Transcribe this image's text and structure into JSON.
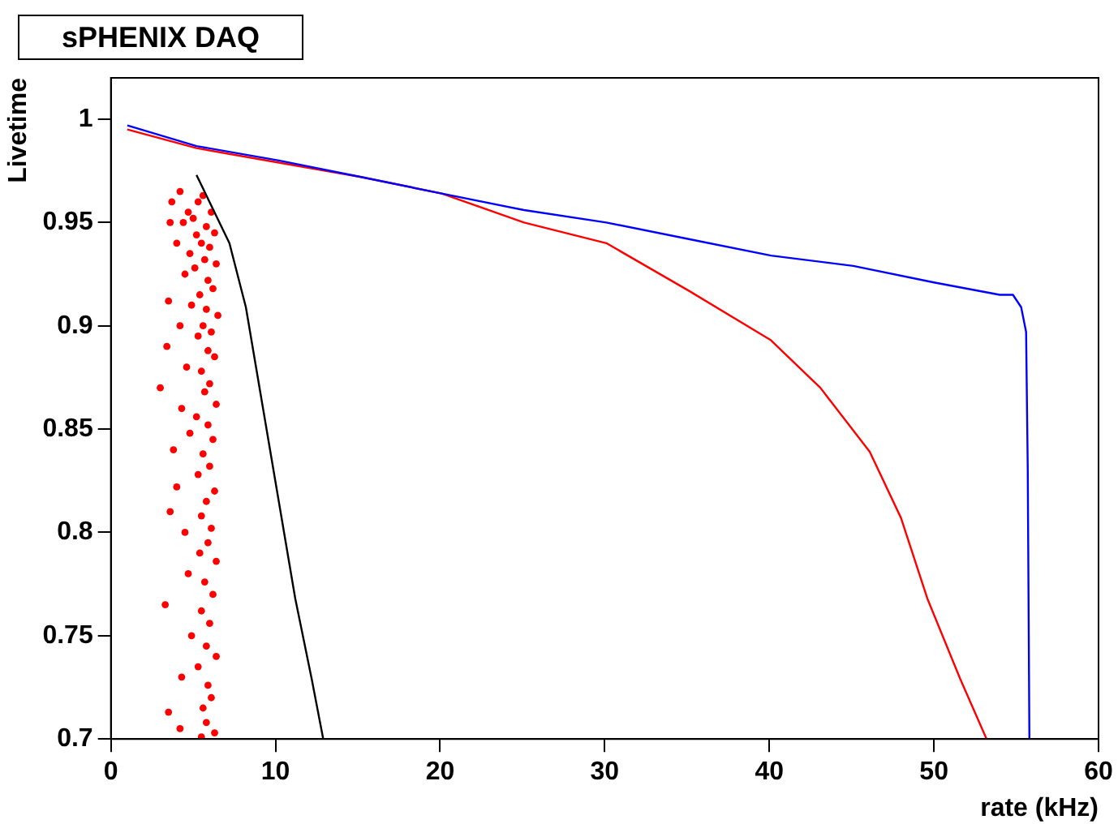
{
  "chart_data": {
    "type": "line",
    "title": "sPHENIX DAQ",
    "xlabel": "rate (kHz)",
    "ylabel": "Livetime",
    "xlim": [
      0,
      60
    ],
    "xticks": [
      0,
      10,
      20,
      30,
      40,
      50,
      60
    ],
    "ylim": [
      0.7,
      1.02
    ],
    "yticks": [
      0.7,
      0.75,
      0.8,
      0.85,
      0.9,
      0.95,
      1
    ],
    "grid": false,
    "legend": false,
    "series": [
      {
        "type": "line",
        "color": "#0000ff",
        "marker": "none",
        "x": [
          1,
          5.2,
          10.2,
          15.2,
          20.1,
          25.1,
          30.1,
          35.1,
          40.1,
          45.1,
          50,
          54,
          54.8,
          55.3,
          55.6,
          55.7,
          55.8
        ],
        "values": [
          0.997,
          0.987,
          0.98,
          0.972,
          0.964,
          0.956,
          0.95,
          0.942,
          0.934,
          0.929,
          0.921,
          0.915,
          0.915,
          0.909,
          0.897,
          0.831,
          0.7
        ]
      },
      {
        "type": "line",
        "color": "#ff0000",
        "marker": "none",
        "x": [
          1,
          5.2,
          10.2,
          15.2,
          20.1,
          25.1,
          30.1,
          35.1,
          40.1,
          43.1,
          46.1,
          48,
          49.6,
          51.6,
          53.2
        ],
        "values": [
          0.995,
          0.986,
          0.979,
          0.972,
          0.964,
          0.95,
          0.94,
          0.917,
          0.893,
          0.87,
          0.839,
          0.807,
          0.768,
          0.729,
          0.7
        ]
      },
      {
        "type": "line",
        "color": "#000000",
        "marker": "none",
        "x": [
          5.2,
          7.2,
          8.2,
          9.2,
          10.2,
          11.2,
          12.2,
          12.9
        ],
        "values": [
          0.973,
          0.94,
          0.909,
          0.862,
          0.815,
          0.768,
          0.729,
          0.7
        ]
      },
      {
        "type": "scatter",
        "color": "#ff0000",
        "marker": "circle",
        "x": [
          4.2,
          3.7,
          5.3,
          5.6,
          4.7,
          6.1,
          5.0,
          3.6,
          4.4,
          5.8,
          6.3,
          5.2,
          4.0,
          5.5,
          6.0,
          4.8,
          5.7,
          6.4,
          5.1,
          4.5,
          5.9,
          6.2,
          5.4,
          3.5,
          4.9,
          5.8,
          6.5,
          4.2,
          5.6,
          6.1,
          5.3,
          3.4,
          5.9,
          6.3,
          4.6,
          5.5,
          6.0,
          3.0,
          5.7,
          6.4,
          4.3,
          5.2,
          5.9,
          4.8,
          6.2,
          3.8,
          5.6,
          6.0,
          5.3,
          4.0,
          6.3,
          5.8,
          3.6,
          5.5,
          6.1,
          4.5,
          5.9,
          5.4,
          6.4,
          4.7,
          5.7,
          6.2,
          3.3,
          5.5,
          6.0,
          4.9,
          5.8,
          6.4,
          5.3,
          4.3,
          5.9,
          6.1,
          5.6,
          3.5,
          5.8,
          4.2,
          6.3,
          5.5
        ],
        "values": [
          0.965,
          0.96,
          0.96,
          0.963,
          0.955,
          0.955,
          0.952,
          0.95,
          0.95,
          0.948,
          0.945,
          0.944,
          0.94,
          0.94,
          0.938,
          0.935,
          0.932,
          0.93,
          0.928,
          0.925,
          0.922,
          0.918,
          0.915,
          0.912,
          0.91,
          0.908,
          0.905,
          0.9,
          0.9,
          0.897,
          0.895,
          0.89,
          0.888,
          0.885,
          0.88,
          0.878,
          0.872,
          0.87,
          0.868,
          0.862,
          0.86,
          0.856,
          0.852,
          0.848,
          0.845,
          0.84,
          0.838,
          0.832,
          0.828,
          0.822,
          0.82,
          0.815,
          0.81,
          0.808,
          0.802,
          0.8,
          0.795,
          0.79,
          0.786,
          0.78,
          0.776,
          0.77,
          0.765,
          0.762,
          0.756,
          0.75,
          0.745,
          0.74,
          0.735,
          0.73,
          0.726,
          0.72,
          0.715,
          0.713,
          0.708,
          0.705,
          0.703,
          0.701
        ]
      }
    ]
  }
}
